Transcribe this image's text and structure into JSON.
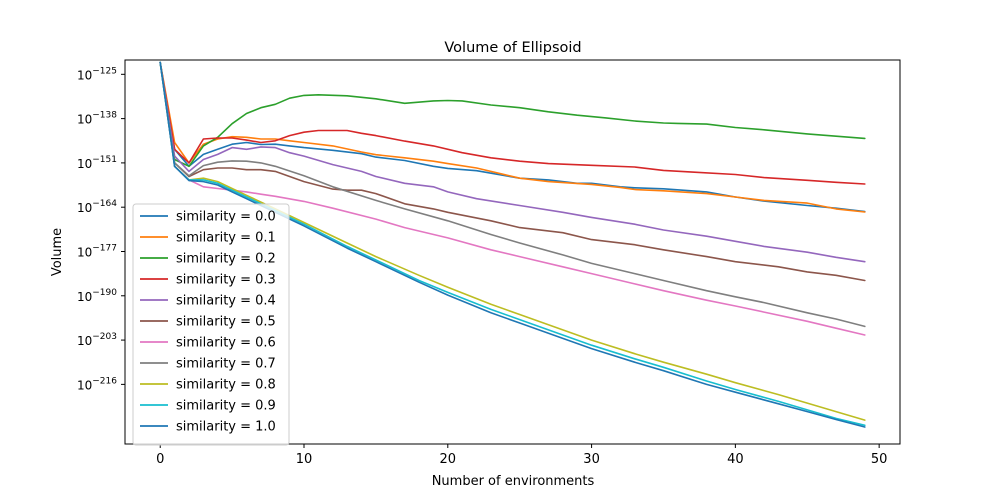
{
  "chart_data": {
    "type": "line",
    "title": "Volume of  Ellipsoid",
    "xlabel": "Number of environments",
    "ylabel": "Volume",
    "xlim": [
      -2.45,
      51.45
    ],
    "ylim_log10": [
      -233.5,
      -120.8
    ],
    "y_scale": "log",
    "grid": false,
    "legend_position": "lower-left",
    "xticks": [
      0,
      10,
      20,
      30,
      40,
      50
    ],
    "yticks": [
      {
        "exp": -125,
        "label_base": "10",
        "label_exp": "−125"
      },
      {
        "exp": -138,
        "label_base": "10",
        "label_exp": "−138"
      },
      {
        "exp": -151,
        "label_base": "10",
        "label_exp": "−151"
      },
      {
        "exp": -164,
        "label_base": "10",
        "label_exp": "−164"
      },
      {
        "exp": -177,
        "label_base": "10",
        "label_exp": "−177"
      },
      {
        "exp": -190,
        "label_base": "10",
        "label_exp": "−190"
      },
      {
        "exp": -203,
        "label_base": "10",
        "label_exp": "−203"
      },
      {
        "exp": -216,
        "label_base": "10",
        "label_exp": "−216"
      }
    ],
    "series": [
      {
        "name": "similarity = 0.0",
        "color": "#1f77b4",
        "x": [
          0,
          1,
          2,
          3,
          4,
          5,
          6,
          7,
          8,
          9,
          10,
          12,
          14,
          15,
          17,
          19,
          20,
          22,
          25,
          27,
          29,
          30,
          32,
          33,
          35,
          38,
          40,
          42,
          45,
          47,
          49
        ],
        "log10_y": [
          -121.5,
          -147,
          -152,
          -148.5,
          -147,
          -145.5,
          -145,
          -145.6,
          -145.5,
          -146,
          -146.5,
          -147.3,
          -148.3,
          -149.3,
          -150.3,
          -152,
          -152.6,
          -153.3,
          -155.5,
          -156,
          -157,
          -157,
          -158,
          -158.3,
          -158.6,
          -159.5,
          -161,
          -162.2,
          -163.5,
          -164.3,
          -165.3
        ]
      },
      {
        "name": "similarity = 0.1",
        "color": "#ff7f0e",
        "x": [
          0,
          1,
          2,
          3,
          4,
          5,
          6,
          7,
          8,
          9,
          10,
          12,
          14,
          15,
          17,
          19,
          20,
          22,
          24,
          25,
          27,
          30,
          32,
          33,
          35,
          38,
          40,
          42,
          45,
          47,
          49
        ],
        "log10_y": [
          -121.5,
          -145,
          -151,
          -145.5,
          -144,
          -143.3,
          -143.5,
          -144,
          -144,
          -144.5,
          -145,
          -146,
          -147.8,
          -148.6,
          -149.5,
          -150.5,
          -151.2,
          -152.5,
          -154.5,
          -155.5,
          -156.5,
          -157.3,
          -158.2,
          -158.8,
          -159.2,
          -160,
          -161,
          -162,
          -162.8,
          -164.5,
          -165.4
        ]
      },
      {
        "name": "similarity = 0.2",
        "color": "#2ca02c",
        "x": [
          0,
          1,
          2,
          3,
          4,
          5,
          6,
          7,
          8,
          9,
          10,
          11,
          13,
          15,
          17,
          19,
          20,
          21,
          23,
          25,
          27,
          29,
          31,
          33,
          35,
          36,
          38,
          40,
          42,
          45,
          49
        ],
        "log10_y": [
          -121.5,
          -150,
          -152,
          -146,
          -143.5,
          -139.5,
          -136.5,
          -134.8,
          -133.8,
          -132,
          -131.2,
          -131,
          -131.3,
          -132.2,
          -133.5,
          -132.8,
          -132.7,
          -132.8,
          -134,
          -134.8,
          -136,
          -137,
          -137.8,
          -138.7,
          -139.3,
          -139.4,
          -139.6,
          -140.6,
          -141.3,
          -142.5,
          -143.8
        ]
      },
      {
        "name": "similarity = 0.3",
        "color": "#d62728",
        "x": [
          0,
          1,
          2,
          3,
          4,
          5,
          6,
          7,
          8,
          9,
          10,
          11,
          13,
          14,
          15,
          17,
          19,
          21,
          23,
          25,
          27,
          30,
          33,
          35,
          37,
          40,
          42,
          45,
          47,
          49
        ],
        "log10_y": [
          -121.5,
          -147,
          -151,
          -144,
          -143.7,
          -143.7,
          -144.3,
          -145,
          -144.5,
          -143,
          -142,
          -141.5,
          -141.5,
          -142.3,
          -143,
          -144.6,
          -146,
          -148,
          -149.5,
          -150.5,
          -151.2,
          -151.7,
          -152.2,
          -153.2,
          -153.7,
          -154.4,
          -155.3,
          -156.1,
          -156.7,
          -157.2
        ]
      },
      {
        "name": "similarity = 0.4",
        "color": "#9467bd",
        "x": [
          0,
          1,
          2,
          3,
          4,
          5,
          6,
          7,
          8,
          9,
          10,
          12,
          14,
          15,
          17,
          19,
          20,
          22,
          25,
          28,
          30,
          33,
          35,
          38,
          40,
          42,
          45,
          47,
          49
        ],
        "log10_y": [
          -121.5,
          -149,
          -153.5,
          -150,
          -148.5,
          -146.5,
          -147,
          -146.3,
          -146.5,
          -148,
          -149,
          -151.5,
          -153.5,
          -155,
          -157,
          -158,
          -159.5,
          -161.5,
          -163.5,
          -165.5,
          -167,
          -169,
          -170.7,
          -172.5,
          -174,
          -175.5,
          -177.2,
          -178.7,
          -180
        ]
      },
      {
        "name": "similarity = 0.5",
        "color": "#8c564b",
        "x": [
          0,
          1,
          2,
          3,
          4,
          5,
          6,
          7,
          8,
          9,
          10,
          12,
          13,
          14,
          15,
          17,
          19,
          20,
          23,
          25,
          28,
          30,
          33,
          35,
          38,
          40,
          43,
          45,
          47,
          49
        ],
        "log10_y": [
          -121.5,
          -151,
          -155,
          -153,
          -152.5,
          -152.5,
          -153,
          -153,
          -153.5,
          -155,
          -156.5,
          -158.7,
          -159,
          -159,
          -160,
          -163,
          -164.5,
          -165.5,
          -168,
          -170,
          -171.5,
          -173.5,
          -175,
          -176.5,
          -178.5,
          -180,
          -181.5,
          -183,
          -184,
          -185.5
        ]
      },
      {
        "name": "similarity = 0.6",
        "color": "#e377c2",
        "x": [
          0,
          1,
          2,
          3,
          4,
          5,
          6,
          7,
          8,
          10,
          12,
          15,
          17,
          20,
          23,
          25,
          28,
          30,
          33,
          35,
          38,
          40,
          42,
          45,
          47,
          49
        ],
        "log10_y": [
          -121.5,
          -152,
          -156,
          -158,
          -158.5,
          -159,
          -159.5,
          -160.2,
          -160.8,
          -162.3,
          -164.3,
          -167.5,
          -170,
          -173,
          -176.5,
          -178.5,
          -181.5,
          -183.5,
          -186.5,
          -188.5,
          -191.3,
          -193,
          -194.8,
          -197.5,
          -199.5,
          -201.5
        ]
      },
      {
        "name": "similarity = 0.7",
        "color": "#7f7f7f",
        "x": [
          0,
          1,
          2,
          3,
          4,
          5,
          6,
          7,
          8,
          10,
          12,
          15,
          17,
          20,
          23,
          25,
          28,
          30,
          33,
          35,
          38,
          40,
          42,
          45,
          47,
          49
        ],
        "log10_y": [
          -121.5,
          -151,
          -154.8,
          -151.8,
          -150.8,
          -150.4,
          -150.5,
          -151,
          -152,
          -154.8,
          -158,
          -162,
          -164.5,
          -168,
          -172,
          -174.5,
          -178,
          -180.5,
          -183.5,
          -185.5,
          -188.5,
          -190.3,
          -192,
          -195,
          -196.8,
          -199
        ]
      },
      {
        "name": "similarity = 0.8",
        "color": "#bcbd22",
        "x": [
          0,
          1,
          2,
          3,
          4,
          5,
          6,
          7,
          8,
          10,
          13,
          15,
          18,
          20,
          23,
          25,
          28,
          30,
          33,
          35,
          38,
          40,
          43,
          45,
          47,
          49
        ],
        "log10_y": [
          -121.5,
          -152,
          -156,
          -155.5,
          -156.5,
          -158.5,
          -160.5,
          -162.5,
          -164.5,
          -168.5,
          -174.5,
          -178.5,
          -184,
          -187.5,
          -192.5,
          -195.5,
          -200,
          -203,
          -207,
          -209.5,
          -213,
          -215.5,
          -219,
          -221.5,
          -224,
          -226.5
        ]
      },
      {
        "name": "similarity = 0.9",
        "color": "#17becf",
        "x": [
          0,
          1,
          2,
          3,
          4,
          5,
          6,
          7,
          8,
          10,
          13,
          15,
          18,
          20,
          23,
          25,
          28,
          30,
          33,
          35,
          38,
          40,
          43,
          45,
          47,
          49
        ],
        "log10_y": [
          -121.5,
          -152,
          -156,
          -156,
          -157,
          -159,
          -161,
          -163,
          -165,
          -169,
          -175.5,
          -179.5,
          -185.5,
          -189,
          -194,
          -197,
          -201.5,
          -204.5,
          -208.5,
          -211,
          -215,
          -217.5,
          -221,
          -223.5,
          -226,
          -228
        ]
      },
      {
        "name": "similarity = 1.0",
        "color": "#1f77b4",
        "x": [
          0,
          1,
          2,
          3,
          4,
          5,
          6,
          7,
          8,
          10,
          13,
          15,
          18,
          20,
          23,
          25,
          28,
          30,
          33,
          35,
          38,
          40,
          43,
          45,
          47,
          49
        ],
        "log10_y": [
          -121.5,
          -152,
          -156.2,
          -156.5,
          -157.5,
          -159.5,
          -161.5,
          -163.5,
          -165.5,
          -169.5,
          -176,
          -180,
          -186,
          -189.8,
          -195,
          -198,
          -202.5,
          -205.5,
          -209.5,
          -212,
          -216,
          -218.3,
          -221.7,
          -224,
          -226.3,
          -228.5
        ]
      }
    ]
  }
}
